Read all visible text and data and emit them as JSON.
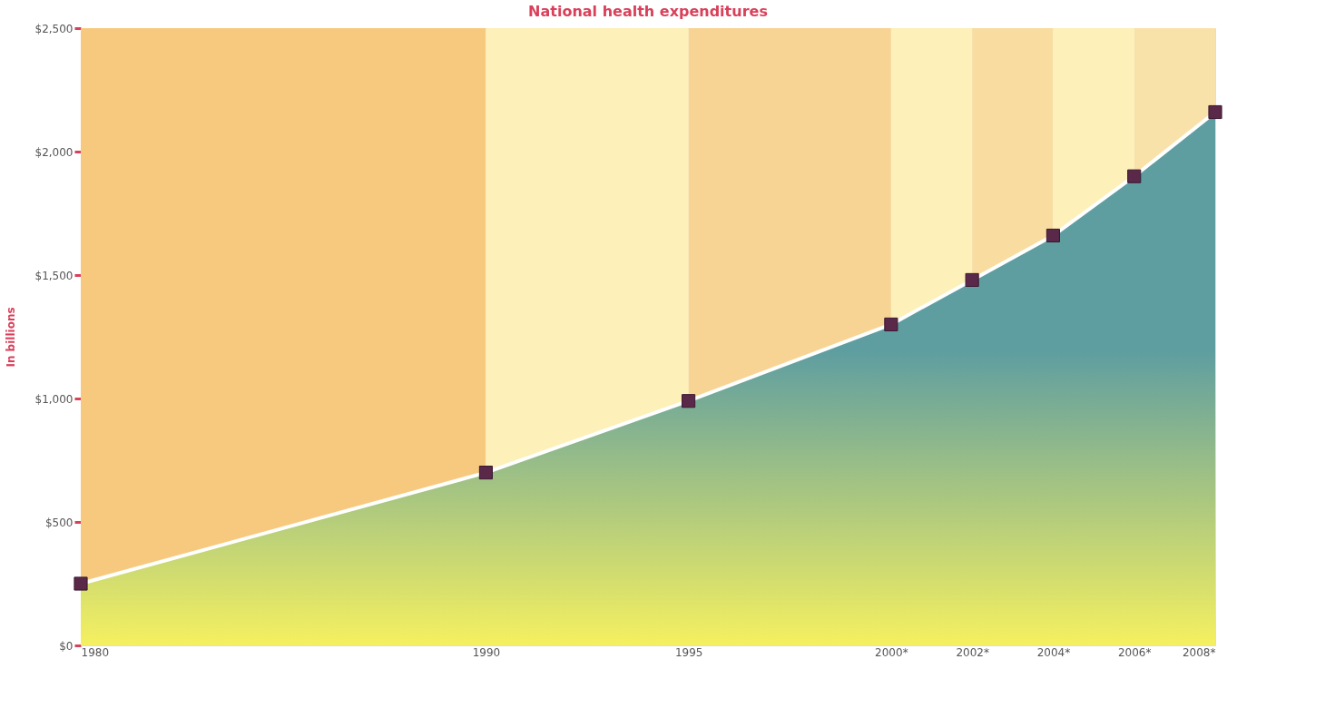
{
  "chart_data": {
    "type": "area",
    "title": "National health expenditures",
    "ylabel": "In billions",
    "x": [
      1980,
      1990,
      1995,
      2000,
      2002,
      2004,
      2006,
      2008
    ],
    "series": [
      {
        "color": "#5f9ea0",
        "values": [
          250,
          700,
          990,
          1300,
          1480,
          1660,
          1900,
          2160
        ]
      }
    ],
    "xlim": [
      1980,
      2008
    ],
    "xticks": [
      {
        "value": 1980,
        "label": "1980"
      },
      {
        "value": 1990,
        "label": "1990"
      },
      {
        "value": 1995,
        "label": "1995"
      },
      {
        "value": 2000,
        "label": "2000*"
      },
      {
        "value": 2002,
        "label": "2002*"
      },
      {
        "value": 2004,
        "label": "2004*"
      },
      {
        "value": 2006,
        "label": "2006*"
      },
      {
        "value": 2008,
        "label": "2008*"
      }
    ],
    "ylim": [
      0,
      2500
    ],
    "yticks": [
      {
        "value": 0,
        "label": "$0"
      },
      {
        "value": 500,
        "label": "$500"
      },
      {
        "value": 1000,
        "label": "$1,000"
      },
      {
        "value": 1500,
        "label": "$1,500"
      },
      {
        "value": 2000,
        "label": "$2,000"
      },
      {
        "value": 2500,
        "label": "$2,500"
      }
    ],
    "bands": [
      {
        "axis": "x",
        "from": 1980,
        "to": 1990,
        "color": "#f7c97e"
      },
      {
        "axis": "x",
        "from": 1990,
        "to": 1995,
        "color": "#fdf0b8"
      },
      {
        "axis": "x",
        "from": 1995,
        "to": 2000,
        "color": "#f7d494"
      },
      {
        "axis": "x",
        "from": 2000,
        "to": 2002,
        "color": "#fdf0b8"
      },
      {
        "axis": "x",
        "from": 2002,
        "to": 2004,
        "color": "#f8dca0"
      },
      {
        "axis": "x",
        "from": 2004,
        "to": 2006,
        "color": "#fdf0b8"
      },
      {
        "axis": "x",
        "from": 2006,
        "to": 2008,
        "color": "#f9e2aa"
      }
    ],
    "marker": "square",
    "grid": false
  }
}
